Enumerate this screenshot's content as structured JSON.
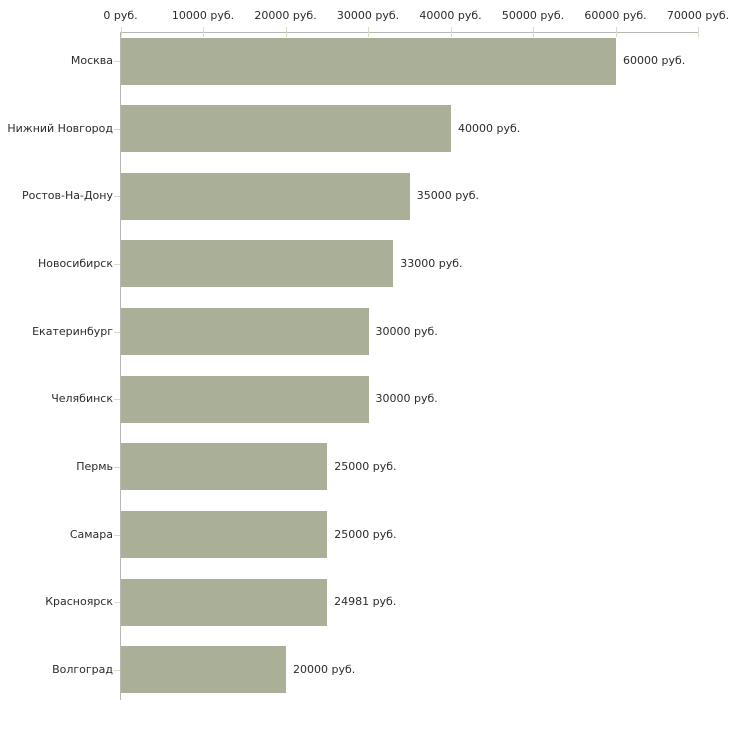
{
  "chart_data": {
    "type": "bar",
    "orientation": "horizontal",
    "title": "",
    "unit": "руб.",
    "categories": [
      "Москва",
      "Нижний Новгород",
      "Ростов-На-Дону",
      "Новосибирск",
      "Екатеринбург",
      "Челябинск",
      "Пермь",
      "Самара",
      "Красноярск",
      "Волгоград"
    ],
    "values": [
      60000,
      40000,
      35000,
      33000,
      30000,
      30000,
      25000,
      25000,
      24981,
      20000
    ],
    "value_labels": [
      "60000 руб.",
      "40000 руб.",
      "35000 руб.",
      "33000 руб.",
      "30000 руб.",
      "30000 руб.",
      "25000 руб.",
      "25000 руб.",
      "24981 руб.",
      "20000 руб."
    ],
    "x_ticks": [
      0,
      10000,
      20000,
      30000,
      40000,
      50000,
      60000,
      70000
    ],
    "x_tick_labels": [
      "0 руб.",
      "10000 руб.",
      "20000 руб.",
      "30000 руб.",
      "40000 руб.",
      "50000 руб.",
      "60000 руб.",
      "70000 руб."
    ],
    "xlim": [
      0,
      70000
    ],
    "grid": false,
    "legend": null,
    "colors": {
      "bar": "#aab097",
      "axis_line": "#b8b8b2",
      "tick": "#d9dcc0",
      "text": "#2b2b2b",
      "background": "#ffffff"
    }
  }
}
